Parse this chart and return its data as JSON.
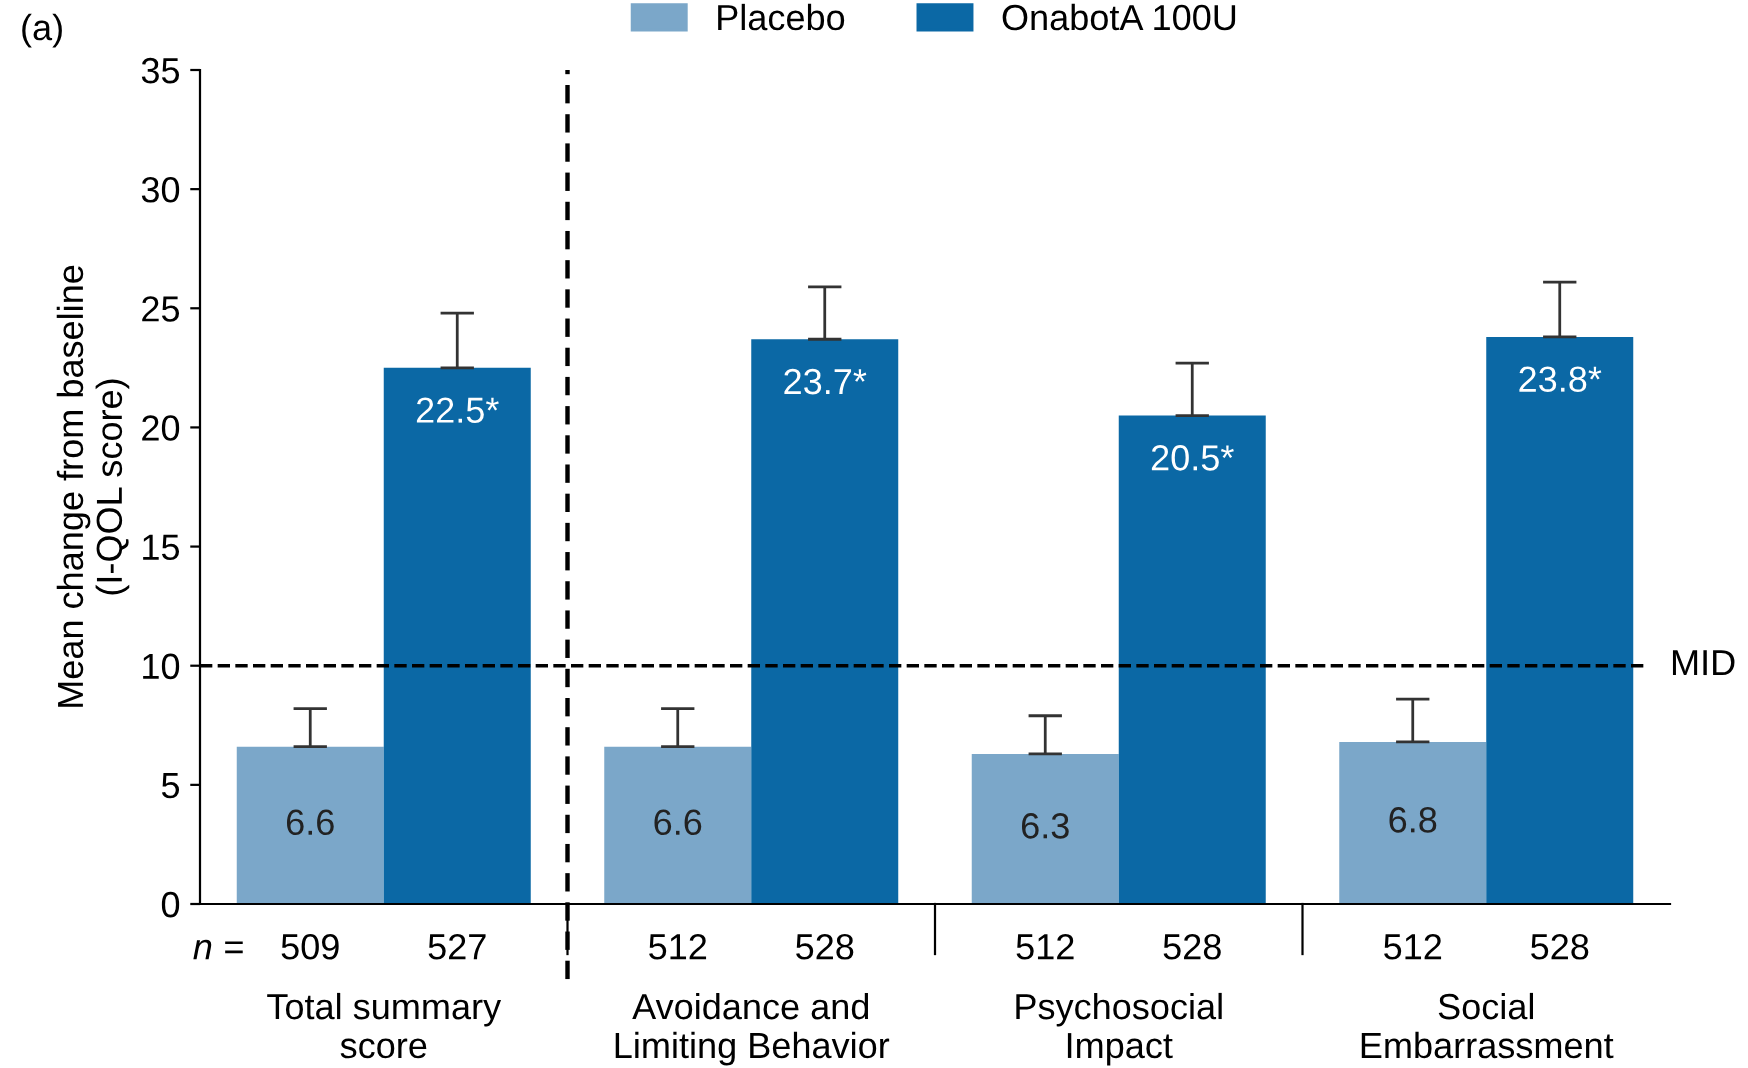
{
  "chart_data": {
    "type": "bar",
    "ylabel": "Mean change from baseline\n(I-QOL score)",
    "categories": [
      "Total summary\nscore",
      "Avoidance and\nLimiting Behavior",
      "Psychosocial\nImpact",
      "Social\nEmbarrassment"
    ],
    "series": [
      {
        "name": "Placebo",
        "color": "#7ba7c9",
        "values": [
          6.6,
          6.6,
          6.3,
          6.8
        ],
        "errors": [
          [
            6.6,
            8.2
          ],
          [
            6.6,
            8.2
          ],
          [
            6.3,
            7.9
          ],
          [
            6.8,
            8.6
          ]
        ],
        "value_labels": [
          "6.6",
          "6.6",
          "6.3",
          "6.8"
        ]
      },
      {
        "name": "OnabotA 100U",
        "color": "#0b68a5",
        "values": [
          22.5,
          23.7,
          20.5,
          23.8
        ],
        "errors": [
          [
            22.5,
            24.8
          ],
          [
            23.7,
            25.9
          ],
          [
            20.5,
            22.7
          ],
          [
            23.8,
            26.1
          ]
        ],
        "value_labels": [
          "22.5*",
          "23.7*",
          "20.5*",
          "23.8*"
        ]
      }
    ],
    "ylim": [
      0,
      35
    ],
    "yticks": [
      0,
      5,
      10,
      15,
      20,
      25,
      30,
      35
    ],
    "grid": false,
    "legend": "top",
    "ref_lines": [
      {
        "axis": "y",
        "value": 10,
        "label": "MID",
        "line_style": "dashed",
        "color": "#000000"
      }
    ],
    "annotations": [
      "(a)",
      "n =",
      "509",
      "527",
      "512",
      "528",
      "512",
      "528",
      "512",
      "528"
    ]
  }
}
